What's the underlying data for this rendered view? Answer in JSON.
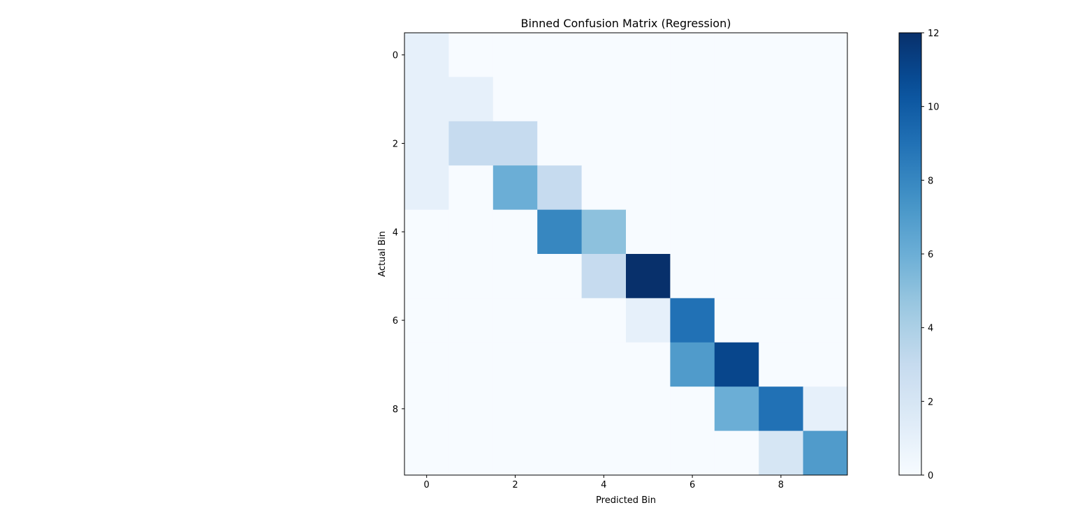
{
  "chart_data": {
    "type": "heatmap",
    "title": "Binned Confusion Matrix (Regression)",
    "xlabel": "Predicted Bin",
    "ylabel": "Actual Bin",
    "x_ticks": [
      0,
      2,
      4,
      6,
      8
    ],
    "y_ticks": [
      0,
      2,
      4,
      6,
      8
    ],
    "rows": 10,
    "cols": 10,
    "matrix": [
      [
        1,
        0,
        0,
        0,
        0,
        0,
        0,
        0,
        0,
        0
      ],
      [
        1,
        1,
        0,
        0,
        0,
        0,
        0,
        0,
        0,
        0
      ],
      [
        1,
        3,
        3,
        0,
        0,
        0,
        0,
        0,
        0,
        0
      ],
      [
        1,
        0,
        6,
        3,
        0,
        0,
        0,
        0,
        0,
        0
      ],
      [
        0,
        0,
        0,
        8,
        5,
        0,
        0,
        0,
        0,
        0
      ],
      [
        0,
        0,
        0,
        0,
        3,
        12,
        0,
        0,
        0,
        0
      ],
      [
        0,
        0,
        0,
        0,
        0,
        1,
        9,
        0,
        0,
        0
      ],
      [
        0,
        0,
        0,
        0,
        0,
        0,
        7,
        11,
        0,
        0
      ],
      [
        0,
        0,
        0,
        0,
        0,
        0,
        0,
        6,
        9,
        1
      ],
      [
        0,
        0,
        0,
        0,
        0,
        0,
        0,
        0,
        2,
        7
      ]
    ],
    "colormap": "Blues",
    "vmin": 0,
    "vmax": 12,
    "colorbar_ticks": [
      0,
      2,
      4,
      6,
      8,
      10,
      12
    ],
    "grid": false
  }
}
